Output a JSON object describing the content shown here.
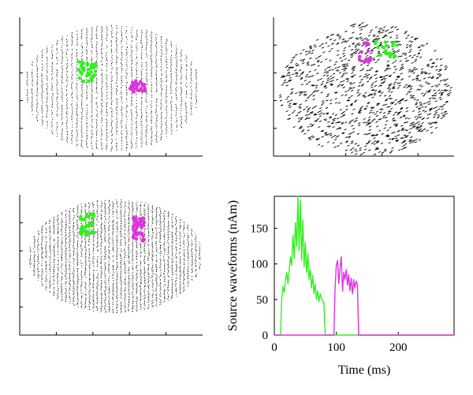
{
  "figure": {
    "panels": [
      {
        "id": "top-left",
        "content": "axial point-cloud view of cortical source space with two active patches"
      },
      {
        "id": "top-right",
        "content": "sagittal point-cloud view of cortical source space with two active patches"
      },
      {
        "id": "bottom-left",
        "content": "coronal point-cloud view of cortical source space with two active patches"
      }
    ],
    "colors": {
      "patch_a": "#33ee22",
      "patch_b": "#dd33dd",
      "cloud": "#000000"
    }
  },
  "chart_data": {
    "type": "line",
    "title": "",
    "xlabel": "Time (ms)",
    "ylabel": "Source waveforms (nAm)",
    "xlim": [
      0,
      290
    ],
    "ylim": [
      0,
      195
    ],
    "xticks": [
      0,
      100,
      200
    ],
    "yticks": [
      0,
      50,
      100,
      150
    ],
    "grid": false,
    "series": [
      {
        "color": "#33ee22",
        "x": [
          0,
          10,
          12,
          14,
          16,
          18,
          20,
          22,
          24,
          26,
          28,
          30,
          32,
          34,
          36,
          38,
          40,
          42,
          44,
          46,
          48,
          50,
          52,
          54,
          56,
          58,
          60,
          62,
          64,
          66,
          68,
          70,
          72,
          74,
          76,
          78,
          80,
          82,
          290
        ],
        "values": [
          0,
          0,
          52,
          68,
          60,
          78,
          88,
          72,
          92,
          110,
          98,
          140,
          108,
          158,
          125,
          195,
          118,
          190,
          105,
          162,
          96,
          130,
          88,
          115,
          78,
          92,
          66,
          84,
          58,
          72,
          50,
          62,
          47,
          58,
          52,
          48,
          45,
          0,
          0
        ]
      },
      {
        "color": "#dd33dd",
        "x": [
          0,
          96,
          98,
          100,
          102,
          104,
          106,
          108,
          110,
          112,
          114,
          116,
          118,
          120,
          122,
          124,
          126,
          128,
          130,
          132,
          134,
          136,
          290
        ],
        "values": [
          0,
          0,
          65,
          98,
          105,
          72,
          95,
          110,
          62,
          88,
          78,
          92,
          70,
          85,
          62,
          80,
          58,
          78,
          66,
          76,
          70,
          0,
          0
        ]
      }
    ]
  }
}
